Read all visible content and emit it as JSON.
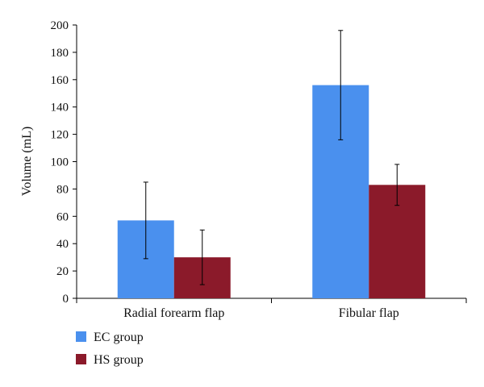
{
  "chart_data": {
    "type": "bar",
    "title": "",
    "xlabel": "",
    "ylabel": "Volume (mL)",
    "ylim": [
      0,
      200
    ],
    "yticks": [
      0,
      20,
      40,
      60,
      80,
      100,
      120,
      140,
      160,
      180,
      200
    ],
    "grid": false,
    "legend_position": "bottom-left",
    "categories": [
      "Radial forearm flap",
      "Fibular flap"
    ],
    "series": [
      {
        "name": "EC group",
        "color": "#4a90ee",
        "values": [
          57,
          156
        ],
        "error": [
          28,
          40
        ]
      },
      {
        "name": "HS group",
        "color": "#8b1a2a",
        "values": [
          30,
          83
        ],
        "error": [
          20,
          15
        ]
      }
    ]
  }
}
